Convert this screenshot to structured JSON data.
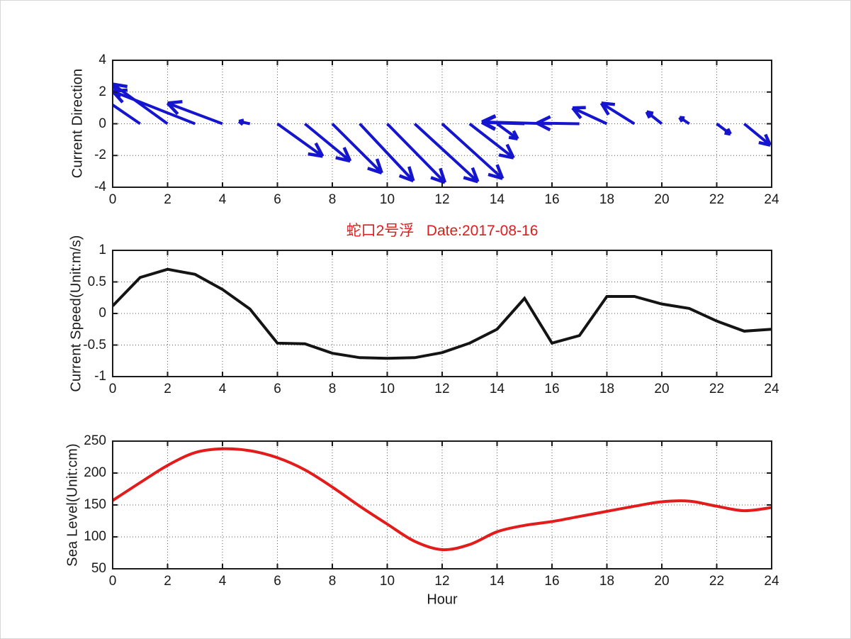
{
  "figure": {
    "background": "#ffffff",
    "axis_color": "#1a1a1a",
    "grid_color": "#5a5a5a"
  },
  "chart_data": [
    {
      "type": "quiver",
      "name": "current-direction",
      "ylabel": "Current Direction",
      "xlim": [
        0,
        24
      ],
      "ylim": [
        -4,
        4
      ],
      "xticks": [
        0,
        2,
        4,
        6,
        8,
        10,
        12,
        14,
        16,
        18,
        20,
        22,
        24
      ],
      "yticks": [
        -4,
        -2,
        0,
        2,
        4
      ],
      "yticklabels": [
        "-4",
        "-2",
        "0",
        "2",
        "4"
      ],
      "grid": true,
      "color": "#1515d0",
      "hours": [
        0,
        1,
        2,
        3,
        4,
        5,
        6,
        7,
        8,
        9,
        10,
        11,
        12,
        13,
        14,
        15,
        16,
        17,
        18,
        19,
        20,
        21,
        22,
        23,
        24
      ],
      "u": [
        0,
        -1.6,
        -2.0,
        -3.0,
        -2.0,
        -0.4,
        1.65,
        1.65,
        1.8,
        1.95,
        2.1,
        2.3,
        2.2,
        1.6,
        0.75,
        -1.55,
        -2.55,
        -1.55,
        -1.25,
        -1.2,
        -0.55,
        -0.35,
        0.5,
        0.95,
        0
      ],
      "v": [
        0,
        1.9,
        2.5,
        2.05,
        1.3,
        0.15,
        -2.05,
        -2.35,
        -3.1,
        -3.6,
        -3.7,
        -3.65,
        -3.45,
        -2.15,
        -0.95,
        0.08,
        0.12,
        0.04,
        1.0,
        1.3,
        0.75,
        0.4,
        -0.65,
        -1.35,
        0
      ]
    },
    {
      "type": "line",
      "name": "current-speed",
      "title": "蛇口2号浮   Date:2017-08-16",
      "title_color": "#dd1d1d",
      "ylabel": "Current Speed(Unit:m/s)",
      "xlim": [
        0,
        24
      ],
      "ylim": [
        -1,
        1
      ],
      "xticks": [
        0,
        2,
        4,
        6,
        8,
        10,
        12,
        14,
        16,
        18,
        20,
        22,
        24
      ],
      "yticks": [
        -1,
        -0.5,
        0,
        0.5,
        1
      ],
      "yticklabels": [
        "-1",
        "-0.5",
        "0",
        "0.5",
        "1"
      ],
      "grid": true,
      "color": "#141414",
      "smooth": false,
      "x": [
        0,
        1,
        2,
        3,
        4,
        5,
        6,
        7,
        8,
        9,
        10,
        11,
        12,
        13,
        14,
        15,
        16,
        17,
        18,
        19,
        20,
        21,
        22,
        23,
        24
      ],
      "y": [
        0.12,
        0.57,
        0.7,
        0.62,
        0.38,
        0.07,
        -0.47,
        -0.48,
        -0.63,
        -0.7,
        -0.71,
        -0.7,
        -0.62,
        -0.47,
        -0.25,
        0.24,
        -0.47,
        -0.35,
        0.27,
        0.27,
        0.15,
        0.08,
        -0.12,
        -0.28,
        -0.25
      ]
    },
    {
      "type": "line",
      "name": "sea-level",
      "ylabel": "Sea Level(Unit:cm)",
      "xlabel": "Hour",
      "xlim": [
        0,
        24
      ],
      "ylim": [
        50,
        250
      ],
      "xticks": [
        0,
        2,
        4,
        6,
        8,
        10,
        12,
        14,
        16,
        18,
        20,
        22,
        24
      ],
      "yticks": [
        50,
        100,
        150,
        200,
        250
      ],
      "yticklabels": [
        "50",
        "100",
        "150",
        "200",
        "250"
      ],
      "grid": true,
      "color": "#e31b1b",
      "smooth": true,
      "x": [
        0,
        1,
        2,
        3,
        4,
        5,
        6,
        7,
        8,
        9,
        10,
        11,
        12,
        13,
        14,
        15,
        16,
        17,
        18,
        19,
        20,
        21,
        22,
        23,
        24
      ],
      "y": [
        157,
        185,
        212,
        232,
        238,
        235,
        224,
        205,
        178,
        148,
        120,
        93,
        80,
        88,
        108,
        118,
        124,
        132,
        140,
        148,
        155,
        156,
        148,
        141,
        146
      ]
    }
  ]
}
